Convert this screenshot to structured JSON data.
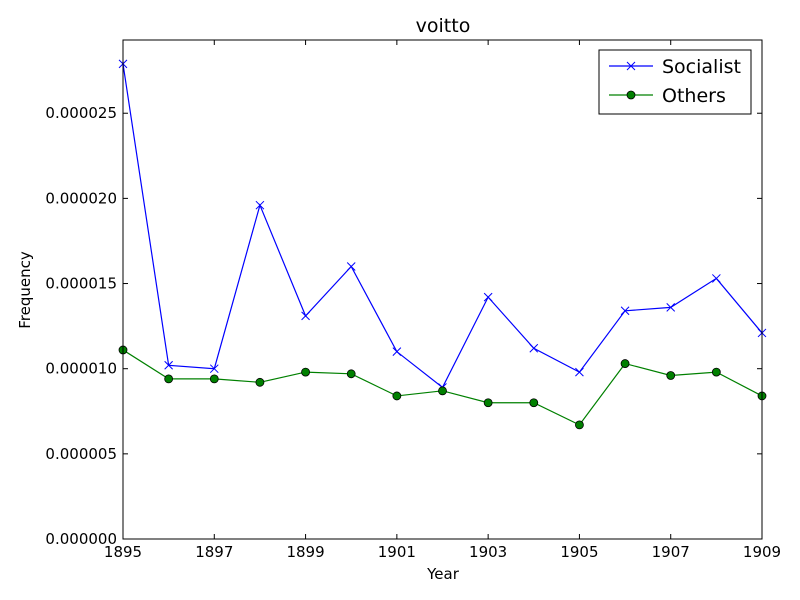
{
  "chart_data": {
    "type": "line",
    "title": "voitto",
    "xlabel": "Year",
    "ylabel": "Frequency",
    "xlim": [
      1895,
      1909
    ],
    "ylim": [
      0,
      2.93e-05
    ],
    "xticks": [
      {
        "value": 1895,
        "label": "1895"
      },
      {
        "value": 1897,
        "label": "1897"
      },
      {
        "value": 1899,
        "label": "1899"
      },
      {
        "value": 1901,
        "label": "1901"
      },
      {
        "value": 1903,
        "label": "1903"
      },
      {
        "value": 1905,
        "label": "1905"
      },
      {
        "value": 1907,
        "label": "1907"
      },
      {
        "value": 1909,
        "label": "1909"
      }
    ],
    "yticks": [
      {
        "value": 0,
        "label": "0.000000"
      },
      {
        "value": 5e-06,
        "label": "0.000005"
      },
      {
        "value": 1e-05,
        "label": "0.000010"
      },
      {
        "value": 1.5e-05,
        "label": "0.000015"
      },
      {
        "value": 2e-05,
        "label": "0.000020"
      },
      {
        "value": 2.5e-05,
        "label": "0.000025"
      }
    ],
    "x": [
      1895,
      1896,
      1897,
      1898,
      1899,
      1900,
      1901,
      1902,
      1903,
      1904,
      1905,
      1906,
      1907,
      1908,
      1909
    ],
    "series": [
      {
        "name": "Socialist",
        "color": "#0000ff",
        "marker": "x",
        "values": [
          2.79e-05,
          1.02e-05,
          1e-05,
          1.96e-05,
          1.31e-05,
          1.6e-05,
          1.1e-05,
          8.9e-06,
          1.42e-05,
          1.12e-05,
          9.8e-06,
          1.34e-05,
          1.36e-05,
          1.53e-05,
          1.21e-05
        ]
      },
      {
        "name": "Others",
        "color": "#008000",
        "marker": "o",
        "values": [
          1.11e-05,
          9.4e-06,
          9.4e-06,
          9.2e-06,
          9.8e-06,
          9.7e-06,
          8.4e-06,
          8.7e-06,
          8e-06,
          8e-06,
          6.7e-06,
          1.03e-05,
          9.6e-06,
          9.8e-06,
          8.4e-06
        ]
      }
    ],
    "legend_position": "top-right",
    "grid": false
  }
}
